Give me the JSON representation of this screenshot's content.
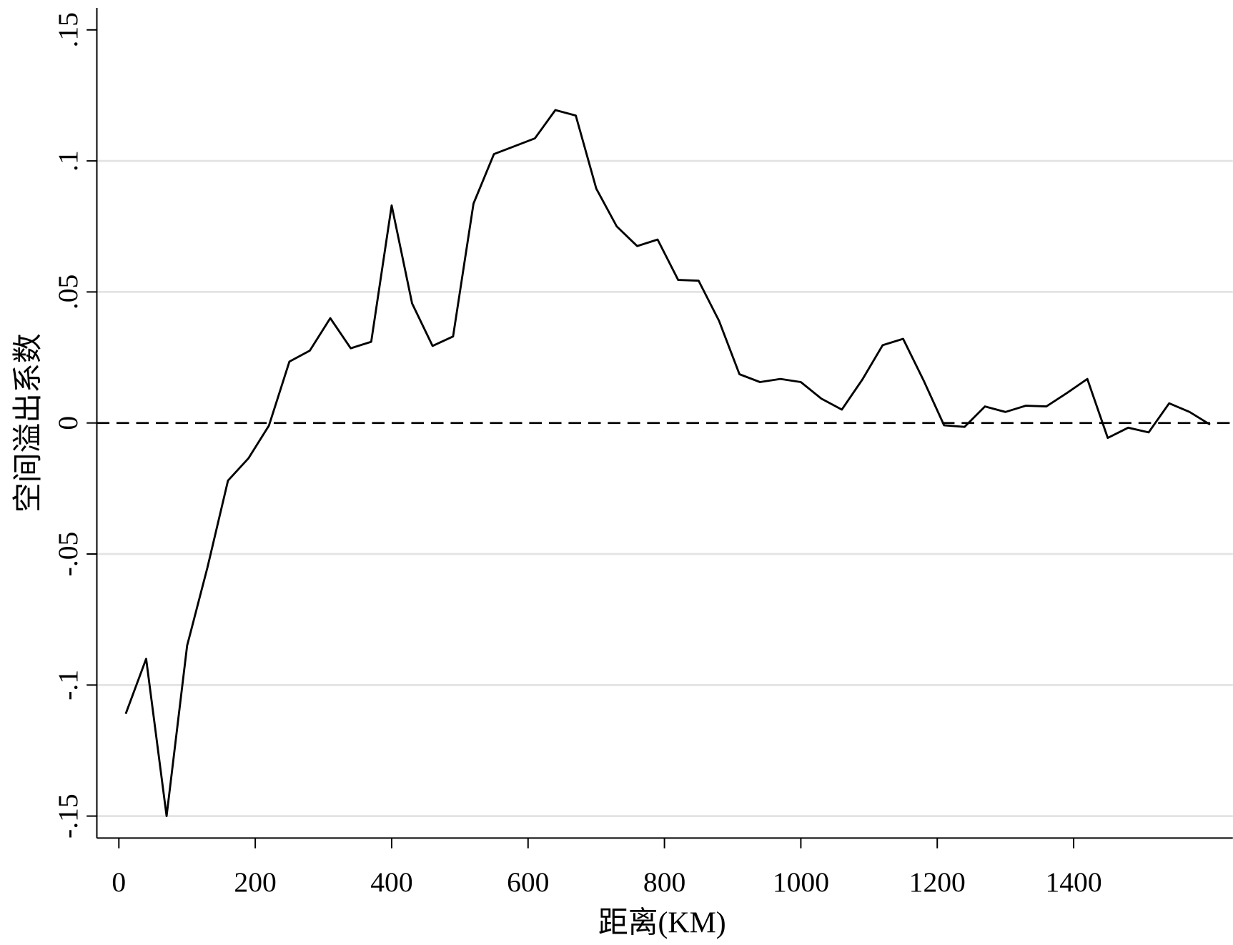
{
  "chart_data": {
    "type": "line",
    "title": "",
    "xlabel": "距离(KM)",
    "ylabel": "空间溢出系数",
    "xlim": [
      -30,
      1640
    ],
    "ylim": [
      -0.158,
      0.158
    ],
    "x_ticks": [
      0,
      200,
      400,
      600,
      800,
      1000,
      1200,
      1400
    ],
    "x_tick_labels": [
      "0",
      "200",
      "400",
      "600",
      "800",
      "1000",
      "1200",
      "1400"
    ],
    "y_ticks": [
      -0.15,
      -0.1,
      -0.05,
      0,
      0.05,
      0.1,
      0.15
    ],
    "y_tick_labels": [
      "-.15",
      "-.1",
      "-.05",
      "0",
      ".05",
      ".1",
      ".15"
    ],
    "grid": true,
    "reference_line": {
      "y": 0,
      "style": "dashed"
    },
    "line_color": "#000000",
    "grid_color": "#e3e3e3",
    "series": [
      {
        "x": [
          10,
          40,
          70,
          100,
          130,
          160,
          190,
          220,
          250,
          280,
          310,
          340,
          370,
          400,
          430,
          460,
          490,
          520,
          550,
          580,
          610,
          640,
          670,
          700,
          730,
          760,
          790,
          820,
          850,
          880,
          910,
          940,
          970,
          1000,
          1030,
          1060,
          1090,
          1120,
          1150,
          1180,
          1210,
          1240,
          1270,
          1300,
          1330,
          1360,
          1390,
          1420,
          1450,
          1480,
          1510,
          1540,
          1570,
          1600
        ],
        "y": [
          -0.111,
          -0.09,
          -0.15,
          -0.085,
          -0.055,
          -0.022,
          -0.0135,
          -0.001,
          0.0234,
          0.0276,
          0.04,
          0.0285,
          0.031,
          0.083,
          0.0456,
          0.0294,
          0.033,
          0.0837,
          0.1026,
          0.1056,
          0.1086,
          0.1194,
          0.1173,
          0.0894,
          0.075,
          0.0675,
          0.07,
          0.0546,
          0.0543,
          0.039,
          0.0186,
          0.0156,
          0.0168,
          0.0156,
          0.0093,
          0.0051,
          0.0165,
          0.0297,
          0.0321,
          0.0162,
          -0.0009,
          -0.0015,
          0.0063,
          0.0042,
          0.0066,
          0.0063,
          0.0114,
          0.0168,
          -0.0057,
          -0.0018,
          -0.0036,
          0.0075,
          0.0042,
          -0.0006
        ]
      }
    ]
  }
}
